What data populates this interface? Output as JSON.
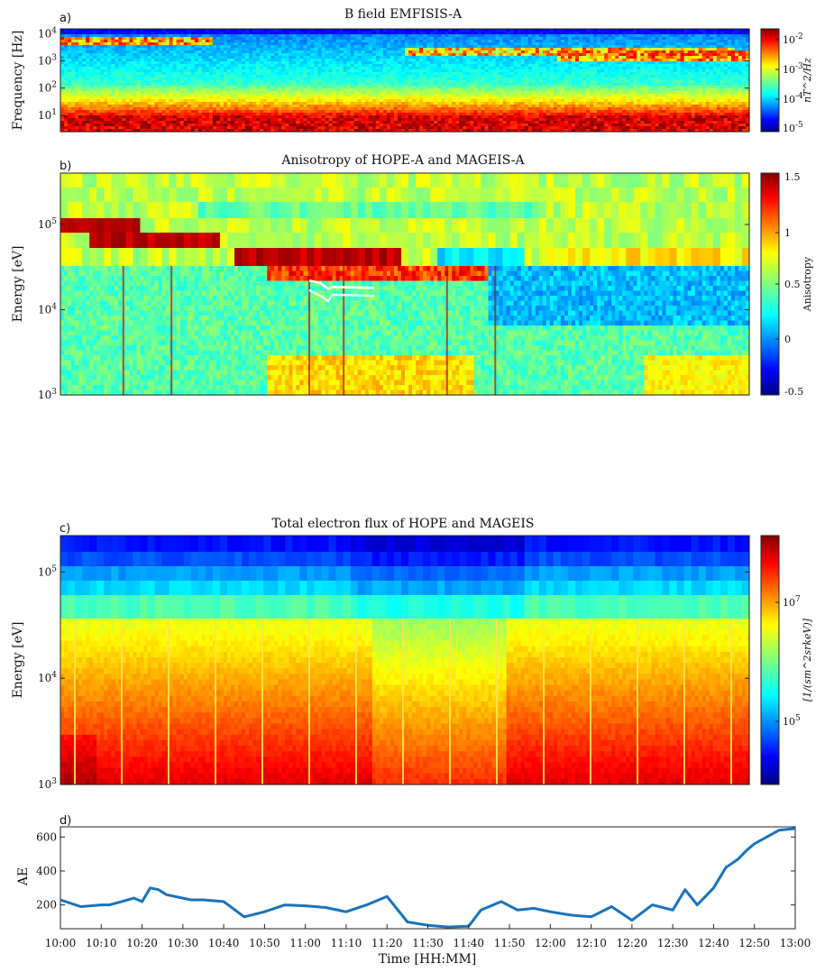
{
  "figure": {
    "x_axis": {
      "label": "Time [HH:MM]",
      "ticks": [
        "10:00",
        "10:10",
        "10:20",
        "10:30",
        "10:40",
        "10:50",
        "11:00",
        "11:10",
        "11:20",
        "11:30",
        "11:40",
        "11:50",
        "12:00",
        "12:10",
        "12:20",
        "12:30",
        "12:40",
        "12:50",
        "13:00"
      ]
    }
  },
  "colors": {
    "line": "#1a72b8",
    "white_line": "#ffffff",
    "cyan_line": "#d8f6ff"
  },
  "chart_data": [
    {
      "panel_label": "a)",
      "type": "heatmap",
      "title": "B field EMFISIS-A",
      "ylabel": "Frequency [Hz]",
      "y_scale": "log",
      "y_ticks": [
        "10^4",
        "10^3",
        "10^2",
        "10^1"
      ],
      "xlim": [
        "10:00",
        "13:00"
      ],
      "colorbar": {
        "label": "nT^2/Hz",
        "scale": "log",
        "ticks": [
          "10^-2",
          "10^-3",
          "10^-4",
          "10^-5"
        ],
        "colormap": "jet"
      }
    },
    {
      "panel_label": "b)",
      "type": "heatmap",
      "title": "Anisotropy of HOPE-A and MAGEIS-A",
      "ylabel": "Energy [eV]",
      "y_scale": "log",
      "y_ticks": [
        "10^5",
        "10^4",
        "10^3"
      ],
      "xlim": [
        "10:00",
        "13:00"
      ],
      "colorbar": {
        "label": "Anisotropy",
        "ticks": [
          "1.5",
          "1",
          "0.5",
          "0",
          "-0.5"
        ],
        "range": [
          -0.5,
          1.5
        ],
        "colormap": "jet"
      },
      "overlay_lines": [
        {
          "color": "white",
          "x": [
            "11:05",
            "11:08",
            "11:10",
            "11:11",
            "11:22"
          ],
          "y": [
            22000,
            20500,
            17500,
            18500,
            18000
          ]
        },
        {
          "color": "cyan",
          "x": [
            "11:05",
            "11:08",
            "11:10",
            "11:11",
            "11:22"
          ],
          "y": [
            17000,
            14500,
            12500,
            15000,
            14500
          ]
        }
      ]
    },
    {
      "panel_label": "c)",
      "type": "heatmap",
      "title": "Total electron flux of HOPE and MAGEIS",
      "ylabel": "Energy [eV]",
      "y_scale": "log",
      "y_ticks": [
        "10^5",
        "10^4",
        "10^3"
      ],
      "xlim": [
        "10:00",
        "13:00"
      ],
      "colorbar": {
        "label": "[1/(sm^2srkeV)]",
        "scale": "log",
        "ticks": [
          "10^7",
          "10^5"
        ],
        "colormap": "jet"
      }
    },
    {
      "panel_label": "d)",
      "type": "line",
      "ylabel": "AE",
      "xlabel": "Time [HH:MM]",
      "xlim": [
        "10:00",
        "13:00"
      ],
      "ylim": [
        60,
        660
      ],
      "y_ticks": [
        "600",
        "400",
        "200"
      ],
      "series": [
        {
          "x_minutes": [
            0,
            5,
            10,
            12,
            15,
            18,
            20,
            22,
            24,
            26,
            28,
            30,
            32,
            35,
            40,
            45,
            50,
            55,
            60,
            65,
            70,
            75,
            80,
            85,
            90,
            95,
            100,
            103,
            108,
            112,
            116,
            120,
            125,
            130,
            135,
            140,
            145,
            150,
            153,
            156,
            160,
            163,
            166,
            168,
            170,
            173,
            176,
            180
          ],
          "x": [
            "10:00",
            "10:05",
            "10:10",
            "10:12",
            "10:15",
            "10:18",
            "10:20",
            "10:22",
            "10:24",
            "10:26",
            "10:28",
            "10:30",
            "10:32",
            "10:35",
            "10:40",
            "10:45",
            "10:50",
            "10:55",
            "11:00",
            "11:05",
            "11:10",
            "11:15",
            "11:20",
            "11:25",
            "11:30",
            "11:35",
            "11:40",
            "11:43",
            "11:48",
            "11:52",
            "11:56",
            "12:00",
            "12:05",
            "12:10",
            "12:15",
            "12:20",
            "12:25",
            "12:30",
            "12:33",
            "12:36",
            "12:40",
            "12:43",
            "12:46",
            "12:48",
            "12:50",
            "12:53",
            "12:56",
            "13:00"
          ],
          "y": [
            230,
            190,
            200,
            200,
            220,
            240,
            220,
            300,
            290,
            260,
            250,
            240,
            230,
            230,
            220,
            130,
            160,
            200,
            195,
            185,
            160,
            200,
            250,
            100,
            80,
            70,
            75,
            170,
            220,
            170,
            180,
            160,
            140,
            130,
            190,
            110,
            200,
            170,
            290,
            200,
            300,
            420,
            470,
            520,
            560,
            600,
            640,
            650
          ]
        }
      ]
    }
  ]
}
